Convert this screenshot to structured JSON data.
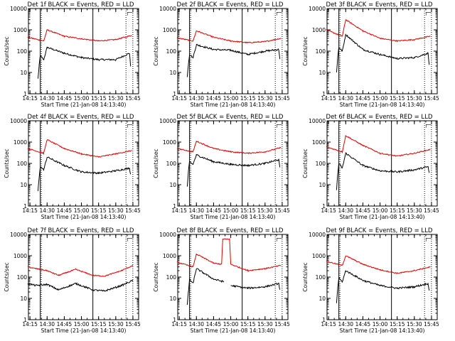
{
  "chart_data": [
    {
      "type": "line",
      "title": "Det 1f BLACK = Events, RED = LLD",
      "xlabel": "Start Time (21-Jan-08 14:13:40)",
      "ylabel": "Counts/sec",
      "yscale": "log",
      "ylim": [
        1,
        10000
      ],
      "yticks": [
        "1",
        "10",
        "100",
        "1000",
        "10000"
      ],
      "xticks": [
        "14:15",
        "14:30",
        "14:45",
        "15:00",
        "15:15",
        "15:30",
        "15:45"
      ],
      "series": [
        {
          "color": "#000000",
          "x": [
            "14:22",
            "14:23",
            "14:24",
            "14:27",
            "14:30",
            "14:45",
            "15:00",
            "15:15",
            "15:30",
            "15:42",
            "15:43"
          ],
          "values": [
            5,
            20,
            60,
            40,
            150,
            80,
            50,
            40,
            40,
            80,
            20
          ]
        },
        {
          "color": "#dd0000",
          "x": [
            "14:13",
            "14:27",
            "14:30",
            "14:45",
            "15:00",
            "15:15",
            "15:30",
            "15:44"
          ],
          "values": [
            450,
            300,
            1000,
            500,
            380,
            300,
            350,
            550
          ]
        }
      ]
    },
    {
      "type": "line",
      "title": "Det 2f BLACK = Events, RED = LLD",
      "xlabel": "Start Time (21-Jan-08 14:13:40)",
      "ylabel": "Counts/sec",
      "yscale": "log",
      "ylim": [
        1,
        10000
      ],
      "yticks": [
        "1",
        "10",
        "100",
        "1000",
        "10000"
      ],
      "xticks": [
        "14:15",
        "14:30",
        "14:45",
        "15:00",
        "15:15",
        "15:30",
        "15:45"
      ],
      "series": [
        {
          "color": "#000000",
          "x": [
            "14:22",
            "14:23",
            "14:24",
            "14:27",
            "14:30",
            "14:45",
            "15:00",
            "15:15",
            "15:30",
            "15:42",
            "15:43"
          ],
          "values": [
            6,
            25,
            70,
            50,
            200,
            120,
            110,
            70,
            100,
            120,
            40
          ]
        },
        {
          "color": "#dd0000",
          "x": [
            "14:13",
            "14:27",
            "14:30",
            "14:45",
            "15:00",
            "15:15",
            "15:30",
            "15:44"
          ],
          "values": [
            420,
            300,
            900,
            450,
            300,
            250,
            280,
            400
          ]
        }
      ]
    },
    {
      "type": "line",
      "title": "Det 3f BLACK = Events, RED = LLD",
      "xlabel": "Start Time (21-Jan-08 14:13:40)",
      "ylabel": "Counts/sec",
      "yscale": "log",
      "ylim": [
        1,
        10000
      ],
      "yticks": [
        "1",
        "10",
        "100",
        "1000",
        "10000"
      ],
      "xticks": [
        "14:15",
        "14:30",
        "14:45",
        "15:00",
        "15:15",
        "15:30",
        "15:45"
      ],
      "series": [
        {
          "color": "#000000",
          "x": [
            "14:22",
            "14:23",
            "14:24",
            "14:27",
            "14:30",
            "14:45",
            "15:00",
            "15:15",
            "15:30",
            "15:42",
            "15:43"
          ],
          "values": [
            10,
            50,
            150,
            100,
            600,
            120,
            70,
            45,
            50,
            80,
            25
          ]
        },
        {
          "color": "#dd0000",
          "x": [
            "14:13",
            "14:27",
            "14:30",
            "14:45",
            "15:00",
            "15:15",
            "15:30",
            "15:44"
          ],
          "values": [
            1000,
            500,
            3000,
            900,
            400,
            300,
            350,
            500
          ]
        }
      ]
    },
    {
      "type": "line",
      "title": "Det 4f BLACK = Events, RED = LLD",
      "xlabel": "Start Time (21-Jan-08 14:13:40)",
      "ylabel": "Counts/sec",
      "yscale": "log",
      "ylim": [
        1,
        10000
      ],
      "yticks": [
        "1",
        "10",
        "100",
        "1000",
        "10000"
      ],
      "xticks": [
        "14:15",
        "14:30",
        "14:45",
        "15:00",
        "15:15",
        "15:30",
        "15:45"
      ],
      "series": [
        {
          "color": "#000000",
          "x": [
            "14:22",
            "14:23",
            "14:24",
            "14:27",
            "14:30",
            "14:45",
            "15:00",
            "15:15",
            "15:30",
            "15:42",
            "15:43"
          ],
          "values": [
            5,
            20,
            70,
            50,
            200,
            80,
            40,
            35,
            45,
            60,
            30
          ]
        },
        {
          "color": "#dd0000",
          "x": [
            "14:13",
            "14:27",
            "14:30",
            "14:45",
            "15:00",
            "15:15",
            "15:30",
            "15:44"
          ],
          "values": [
            500,
            300,
            1300,
            500,
            280,
            200,
            280,
            400
          ]
        }
      ]
    },
    {
      "type": "line",
      "title": "Det 5f BLACK = Events, RED = LLD",
      "xlabel": "Start Time (21-Jan-08 14:13:40)",
      "ylabel": "Counts/sec",
      "yscale": "log",
      "ylim": [
        1,
        10000
      ],
      "yticks": [
        "1",
        "10",
        "100",
        "1000",
        "10000"
      ],
      "xticks": [
        "14:15",
        "14:30",
        "14:45",
        "15:00",
        "15:15",
        "15:30",
        "15:45"
      ],
      "series": [
        {
          "color": "#000000",
          "x": [
            "14:22",
            "14:23",
            "14:24",
            "14:27",
            "14:30",
            "14:45",
            "15:00",
            "15:15",
            "15:30",
            "15:42",
            "15:43"
          ],
          "values": [
            8,
            40,
            120,
            90,
            250,
            120,
            90,
            80,
            100,
            150,
            60
          ]
        },
        {
          "color": "#dd0000",
          "x": [
            "14:13",
            "14:27",
            "14:30",
            "14:45",
            "15:00",
            "15:15",
            "15:30",
            "15:44"
          ],
          "values": [
            500,
            350,
            1100,
            500,
            350,
            300,
            350,
            550
          ]
        }
      ]
    },
    {
      "type": "line",
      "title": "Det 6f BLACK = Events, RED = LLD",
      "xlabel": "Start Time (21-Jan-08 14:13:40)",
      "ylabel": "Counts/sec",
      "yscale": "log",
      "ylim": [
        1,
        10000
      ],
      "yticks": [
        "1",
        "10",
        "100",
        "1000",
        "10000"
      ],
      "xticks": [
        "14:15",
        "14:30",
        "14:45",
        "15:00",
        "15:15",
        "15:30",
        "15:45"
      ],
      "series": [
        {
          "color": "#000000",
          "x": [
            "14:22",
            "14:23",
            "14:24",
            "14:27",
            "14:30",
            "14:45",
            "15:00",
            "15:15",
            "15:30",
            "15:42",
            "15:43"
          ],
          "values": [
            6,
            30,
            100,
            60,
            300,
            80,
            45,
            40,
            50,
            70,
            35
          ]
        },
        {
          "color": "#dd0000",
          "x": [
            "14:13",
            "14:27",
            "14:30",
            "14:45",
            "15:00",
            "15:15",
            "15:30",
            "15:44"
          ],
          "values": [
            600,
            350,
            2000,
            700,
            300,
            220,
            300,
            450
          ]
        }
      ]
    },
    {
      "type": "line",
      "title": "Det 7f BLACK = Events, RED = LLD",
      "xlabel": "Start Time (21-Jan-08 14:13:40)",
      "ylabel": "Counts/sec",
      "yscale": "log",
      "ylim": [
        1,
        10000
      ],
      "yticks": [
        "1",
        "10",
        "100",
        "1000",
        "10000"
      ],
      "xticks": [
        "14:15",
        "14:30",
        "14:45",
        "15:00",
        "15:15",
        "15:30",
        "15:45"
      ],
      "series": [
        {
          "color": "#000000",
          "x": [
            "14:13",
            "14:20",
            "14:30",
            "14:40",
            "14:55",
            "15:10",
            "15:20",
            "15:35",
            "15:45"
          ],
          "values": [
            50,
            40,
            45,
            25,
            50,
            25,
            22,
            40,
            70
          ]
        },
        {
          "color": "#dd0000",
          "x": [
            "14:13",
            "14:20",
            "14:30",
            "14:40",
            "14:55",
            "15:10",
            "15:20",
            "15:35",
            "15:45"
          ],
          "values": [
            300,
            250,
            200,
            120,
            230,
            120,
            110,
            200,
            350
          ]
        }
      ]
    },
    {
      "type": "line",
      "title": "Det 8f BLACK = Events, RED = LLD",
      "xlabel": "Start Time (21-Jan-08 14:13:40)",
      "ylabel": "Counts/sec",
      "yscale": "log",
      "ylim": [
        1,
        10000
      ],
      "yticks": [
        "1",
        "10",
        "100",
        "1000",
        "10000"
      ],
      "xticks": [
        "14:15",
        "14:30",
        "14:45",
        "15:00",
        "15:15",
        "15:30",
        "15:45"
      ],
      "series": [
        {
          "color": "#000000",
          "x": [
            "14:22",
            "14:23",
            "14:24",
            "14:27",
            "14:30",
            "14:45",
            "14:54",
            "14:55",
            "15:00",
            "15:15",
            "15:30",
            "15:42",
            "15:43"
          ],
          "values": [
            5,
            20,
            80,
            50,
            250,
            80,
            60,
            null,
            40,
            30,
            35,
            50,
            25
          ]
        },
        {
          "color": "#dd0000",
          "x": [
            "14:13",
            "14:27",
            "14:30",
            "14:45",
            "14:52",
            "14:53",
            "14:59",
            "15:00",
            "15:15",
            "15:30",
            "15:44"
          ],
          "values": [
            500,
            300,
            1200,
            450,
            400,
            6000,
            6000,
            400,
            200,
            250,
            350
          ]
        }
      ]
    },
    {
      "type": "line",
      "title": "Det 9f BLACK = Events, RED = LLD",
      "xlabel": "Start Time (21-Jan-08 14:13:40)",
      "ylabel": "Counts/sec",
      "yscale": "log",
      "ylim": [
        1,
        10000
      ],
      "yticks": [
        "1",
        "10",
        "100",
        "1000",
        "10000"
      ],
      "xticks": [
        "14:15",
        "14:30",
        "14:45",
        "15:00",
        "15:15",
        "15:30",
        "15:45"
      ],
      "series": [
        {
          "color": "#000000",
          "x": [
            "14:22",
            "14:23",
            "14:24",
            "14:27",
            "14:30",
            "14:45",
            "15:00",
            "15:15",
            "15:30",
            "15:42",
            "15:43"
          ],
          "values": [
            6,
            30,
            90,
            60,
            200,
            70,
            40,
            30,
            35,
            50,
            25
          ]
        },
        {
          "color": "#dd0000",
          "x": [
            "14:13",
            "14:27",
            "14:30",
            "14:45",
            "15:00",
            "15:15",
            "15:30",
            "15:44"
          ],
          "values": [
            550,
            350,
            1000,
            400,
            220,
            150,
            200,
            300
          ]
        }
      ]
    }
  ],
  "panel_bracket": "┌─",
  "vertical_markers": {
    "solid": [
      "14:24",
      "15:10"
    ],
    "dotted": [
      "14:24",
      "15:38",
      "15:44"
    ]
  }
}
